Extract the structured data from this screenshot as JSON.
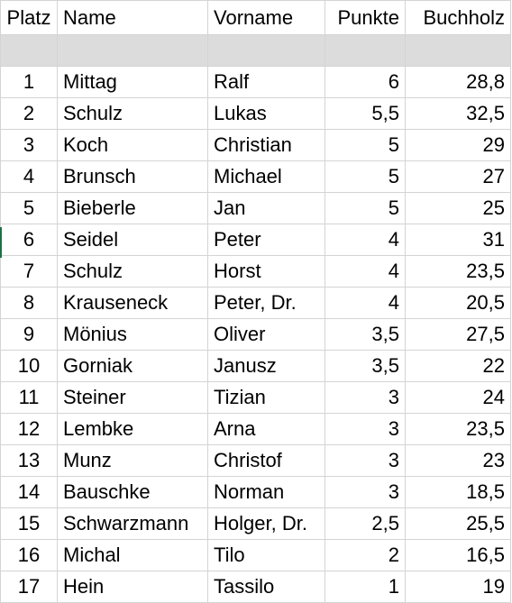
{
  "headers": {
    "platz": "Platz",
    "name": "Name",
    "vorname": "Vorname",
    "punkte": "Punkte",
    "buchholz": "Buchholz"
  },
  "rows": [
    {
      "platz": "1",
      "name": "Mittag",
      "vorname": "Ralf",
      "punkte": "6",
      "buchholz": "28,8"
    },
    {
      "platz": "2",
      "name": "Schulz",
      "vorname": "Lukas",
      "punkte": "5,5",
      "buchholz": "32,5"
    },
    {
      "platz": "3",
      "name": "Koch",
      "vorname": "Christian",
      "punkte": "5",
      "buchholz": "29"
    },
    {
      "platz": "4",
      "name": "Brunsch",
      "vorname": "Michael",
      "punkte": "5",
      "buchholz": "27"
    },
    {
      "platz": "5",
      "name": "Bieberle",
      "vorname": "Jan",
      "punkte": "5",
      "buchholz": "25"
    },
    {
      "platz": "6",
      "name": "Seidel",
      "vorname": "Peter",
      "punkte": "4",
      "buchholz": "31"
    },
    {
      "platz": "7",
      "name": "Schulz",
      "vorname": "Horst",
      "punkte": "4",
      "buchholz": "23,5"
    },
    {
      "platz": "8",
      "name": "Krauseneck",
      "vorname": "Peter, Dr.",
      "punkte": "4",
      "buchholz": "20,5"
    },
    {
      "platz": "9",
      "name": "Mönius",
      "vorname": "Oliver",
      "punkte": "3,5",
      "buchholz": "27,5"
    },
    {
      "platz": "10",
      "name": "Gorniak",
      "vorname": "Janusz",
      "punkte": "3,5",
      "buchholz": "22"
    },
    {
      "platz": "11",
      "name": "Steiner",
      "vorname": "Tizian",
      "punkte": "3",
      "buchholz": "24"
    },
    {
      "platz": "12",
      "name": "Lembke",
      "vorname": "Arna",
      "punkte": "3",
      "buchholz": "23,5"
    },
    {
      "platz": "13",
      "name": "Munz",
      "vorname": "Christof",
      "punkte": "3",
      "buchholz": "23"
    },
    {
      "platz": "14",
      "name": "Bauschke",
      "vorname": "Norman",
      "punkte": "3",
      "buchholz": "18,5"
    },
    {
      "platz": "15",
      "name": "Schwarzmann",
      "vorname": "Holger, Dr.",
      "punkte": "2,5",
      "buchholz": "25,5"
    },
    {
      "platz": "16",
      "name": "Michal",
      "vorname": "Tilo",
      "punkte": "2",
      "buchholz": "16,5"
    },
    {
      "platz": "17",
      "name": "Hein",
      "vorname": "Tassilo",
      "punkte": "1",
      "buchholz": "19"
    }
  ],
  "colors": {
    "spacer_row": "#dcdcdc",
    "gridline": "#d4d4d4",
    "selection_accent": "#1e7145"
  }
}
